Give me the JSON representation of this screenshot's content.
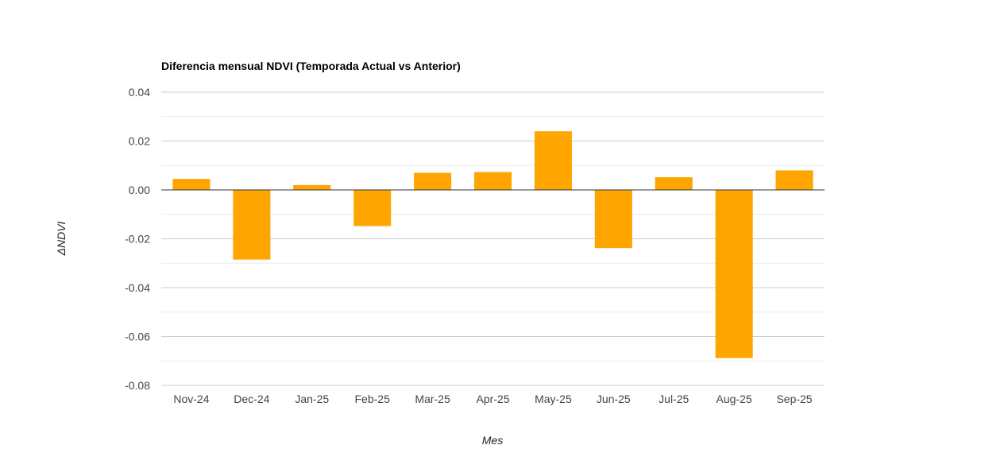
{
  "chart_data": {
    "type": "bar",
    "title": "Diferencia mensual NDVI (Temporada Actual vs Anterior)",
    "xlabel": "Mes",
    "ylabel": "ΔNDVI",
    "categories": [
      "Nov-24",
      "Dec-24",
      "Jan-25",
      "Feb-25",
      "Mar-25",
      "Apr-25",
      "May-25",
      "Jun-25",
      "Jul-25",
      "Aug-25",
      "Sep-25"
    ],
    "values": [
      0.0045,
      -0.0285,
      0.002,
      -0.0148,
      0.007,
      0.0073,
      0.024,
      -0.0238,
      0.0052,
      -0.0688,
      0.008
    ],
    "ylim": [
      -0.08,
      0.04
    ],
    "yticks": [
      "0.04",
      "0.02",
      "0.00",
      "-0.02",
      "-0.04",
      "-0.06",
      "-0.08"
    ],
    "bar_color": "#ffa500",
    "grid": true,
    "legend": "none"
  }
}
